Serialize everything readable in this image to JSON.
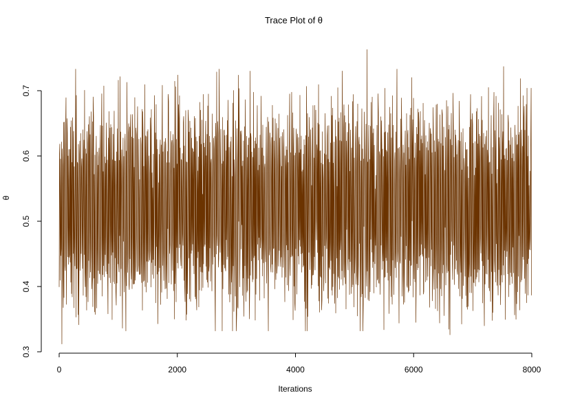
{
  "chart_data": {
    "type": "line",
    "title": "Trace Plot of θ",
    "xlabel": "Iterations",
    "ylabel": "θ",
    "xlim": [
      0,
      8000
    ],
    "ylim": [
      0.3,
      0.76
    ],
    "x_ticks": [
      0,
      2000,
      4000,
      6000,
      8000
    ],
    "x_tick_labels": [
      "0",
      "2000",
      "4000",
      "6000",
      "8000"
    ],
    "y_ticks": [
      0.3,
      0.4,
      0.5,
      0.6,
      0.7
    ],
    "y_tick_labels": [
      "0.3",
      "0.4",
      "0.5",
      "0.6",
      "0.7"
    ],
    "grid": false,
    "legend": "none",
    "line_color": "#6b3300",
    "series": [
      {
        "x_start": 0,
        "x_end": 8000,
        "n_samples": 8000,
        "mean": 0.525,
        "sd": 0.065,
        "min": 0.312,
        "max": 0.763,
        "notable_points": [
          {
            "x": 50,
            "y": 0.312
          },
          {
            "x": 5210,
            "y": 0.763
          },
          {
            "x": 6620,
            "y": 0.326
          },
          {
            "x": 7530,
            "y": 0.737
          },
          {
            "x": 2010,
            "y": 0.724
          }
        ]
      }
    ]
  }
}
